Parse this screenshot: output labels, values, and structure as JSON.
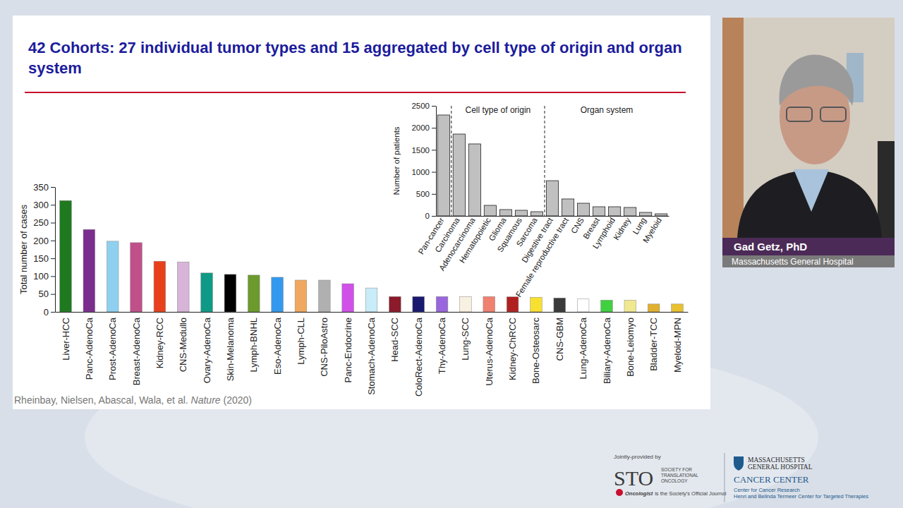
{
  "slide": {
    "title": "42 Cohorts: 27 individual tumor types and 15 aggregated by cell type of origin and organ system",
    "citation_authors": "Rheinbay, Nielsen, Abascal, Wala, et al.",
    "citation_journal": "Nature",
    "citation_year": "(2020)",
    "speaker": {
      "name": "Gad Getz, PhD",
      "affiliation": "Massachusetts General Hospital"
    },
    "footer": {
      "provided_by": "Jointly-provided by",
      "sto": "STO",
      "society": [
        "SOCIETY FOR",
        "TRANSLATIONAL",
        "ONCOLOGY"
      ],
      "journal": "Oncologist",
      "journal_note": "is the Society's Official Journal",
      "hospital": [
        "MASSACHUSETTS",
        "GENERAL HOSPITAL"
      ],
      "center": "CANCER CENTER",
      "sub": [
        "Center for Cancer Research",
        "Henri and Belinda Termeer Center for Targeted Therapies"
      ]
    }
  },
  "chart_data": [
    {
      "type": "bar",
      "y_label": "Total number of cases",
      "categories": [
        "Liver-HCC",
        "Panc-AdenoCa",
        "Prost-AdenoCa",
        "Breast-AdenoCa",
        "Kidney-RCC",
        "CNS-Medullo",
        "Ovary-AdenoCa",
        "Skin-Melanoma",
        "Lymph-BNHL",
        "Eso-AdenoCa",
        "Lymph-CLL",
        "CNS-PiloAstro",
        "Panc-Endocrine",
        "Stomach-AdenoCa",
        "Head-SCC",
        "ColoRect-AdenoCa",
        "Thy-AdenoCa",
        "Lung-SCC",
        "Uterus-AdenoCa",
        "Kidney-ChRCC",
        "Bone-Osteosarc",
        "CNS-GBM",
        "Lung-AdenoCa",
        "Biliary-AdenoCa",
        "Bone-Leiomyo",
        "Bladder-TCC",
        "Myeloid-MPN"
      ],
      "values": [
        312,
        231,
        198,
        194,
        142,
        140,
        109,
        105,
        103,
        97,
        89,
        89,
        79,
        67,
        43,
        43,
        43,
        43,
        43,
        42,
        41,
        39,
        36,
        33,
        33,
        22,
        22
      ],
      "colors": [
        "#1f7a1f",
        "#7b2d8e",
        "#8fd0f0",
        "#c0508a",
        "#e8401c",
        "#d8b4d8",
        "#0e9a86",
        "#000000",
        "#6c9a2c",
        "#3399ee",
        "#f0a860",
        "#b0b0b0",
        "#d050e8",
        "#c8ecf8",
        "#8b1a2a",
        "#191970",
        "#9966dd",
        "#f8f0e0",
        "#f08070",
        "#b02020",
        "#f8e030",
        "#3a3a3a",
        "#ffffff",
        "#40d040",
        "#f0e890",
        "#e0b030",
        "#e8c030"
      ],
      "ylim": [
        0,
        350
      ],
      "yticks": [
        0,
        50,
        100,
        150,
        200,
        250,
        300,
        350
      ]
    },
    {
      "type": "bar",
      "y_label": "Number of patients",
      "annotations": [
        "Cell type of origin",
        "Organ system"
      ],
      "categories": [
        "Pan-cancer",
        "Carcinoma",
        "Adenocarcinoma",
        "Hematopoietic",
        "Glioma",
        "Squamous",
        "Sarcoma",
        "Digestive tract",
        "Female reproductive tract",
        "CNS",
        "Breast",
        "Lymphoid",
        "Kidney",
        "Lung",
        "Myeloid"
      ],
      "values": [
        2292,
        1859,
        1635,
        240,
        144,
        128,
        96,
        800,
        385,
        288,
        208,
        208,
        192,
        80,
        48
      ],
      "color": "#c0c0c0",
      "ylim": [
        0,
        2500
      ],
      "yticks": [
        0,
        500,
        1000,
        1500,
        2000,
        2500
      ]
    }
  ]
}
